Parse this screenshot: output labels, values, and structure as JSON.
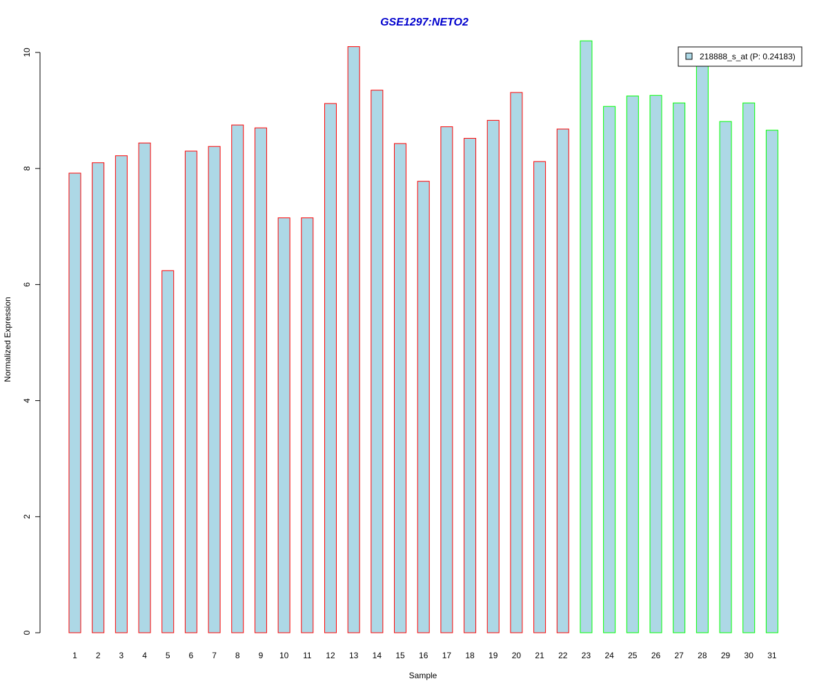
{
  "chart_data": {
    "type": "bar",
    "title": "GSE1297:NETO2",
    "xlabel": "Sample",
    "ylabel": "Normalized Expression",
    "ylim": [
      0,
      10
    ],
    "yticks": [
      0,
      2,
      4,
      6,
      8,
      10
    ],
    "categories": [
      "1",
      "2",
      "3",
      "4",
      "5",
      "6",
      "7",
      "8",
      "9",
      "10",
      "11",
      "12",
      "13",
      "14",
      "15",
      "16",
      "17",
      "18",
      "19",
      "20",
      "21",
      "22",
      "23",
      "24",
      "25",
      "26",
      "27",
      "28",
      "29",
      "30",
      "31"
    ],
    "values": [
      7.92,
      8.1,
      8.22,
      8.44,
      6.24,
      8.3,
      8.38,
      8.75,
      8.7,
      7.15,
      7.15,
      9.12,
      10.1,
      9.35,
      8.43,
      7.78,
      8.72,
      8.52,
      8.83,
      9.31,
      8.12,
      8.68,
      10.2,
      9.07,
      9.25,
      9.26,
      9.13,
      9.83,
      8.81,
      9.13,
      8.66
    ],
    "groups": [
      "red",
      "red",
      "red",
      "red",
      "red",
      "red",
      "red",
      "red",
      "red",
      "red",
      "red",
      "red",
      "red",
      "red",
      "red",
      "red",
      "red",
      "red",
      "red",
      "red",
      "red",
      "red",
      "green",
      "green",
      "green",
      "green",
      "green",
      "green",
      "green",
      "green",
      "green"
    ],
    "legend": {
      "label": "218888_s_at (P: 0.24183)",
      "placement": "top-right"
    },
    "colors": {
      "fill": "#add8e6",
      "red_border": "#ff0000",
      "green_border": "#00ff00",
      "title": "#0000cd"
    },
    "grid": false
  }
}
